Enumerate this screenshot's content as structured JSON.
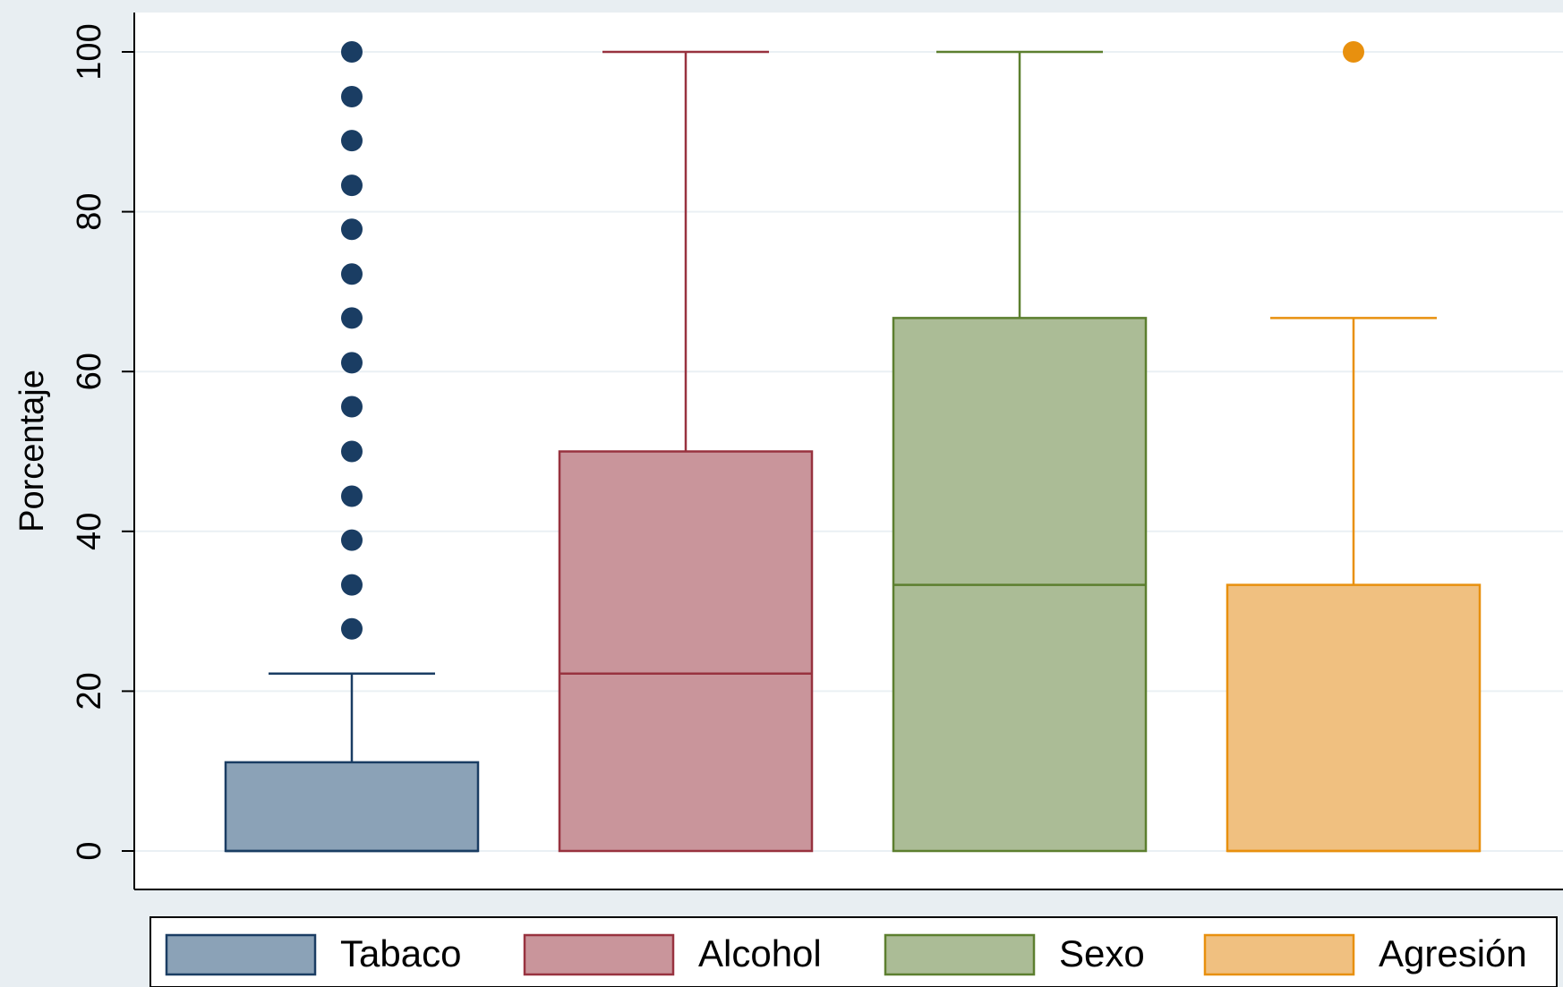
{
  "chart_data": {
    "type": "box",
    "title": "",
    "xlabel": "",
    "ylabel": "Porcentaje",
    "ylim": [
      0,
      100
    ],
    "yticks": [
      0,
      20,
      40,
      60,
      80,
      100
    ],
    "grid": true,
    "legend_position": "bottom",
    "series": [
      {
        "name": "Tabaco",
        "color": "#1a3d63",
        "fill": "#8ba2b7",
        "whisker_low": 0,
        "q1": 0,
        "median": 0,
        "q3": 11.1,
        "whisker_high": 22.2,
        "outliers": [
          27.8,
          33.3,
          38.9,
          44.4,
          50,
          55.6,
          61.1,
          66.7,
          72.2,
          77.8,
          83.3,
          88.9,
          94.4,
          100
        ]
      },
      {
        "name": "Alcohol",
        "color": "#98323f",
        "fill": "#c9959b",
        "whisker_low": 0,
        "q1": 0,
        "median": 22.2,
        "q3": 50,
        "whisker_high": 100,
        "outliers": []
      },
      {
        "name": "Sexo",
        "color": "#5c7f2f",
        "fill": "#abbc96",
        "whisker_low": 0,
        "q1": 0,
        "median": 33.3,
        "q3": 66.7,
        "whisker_high": 100,
        "outliers": []
      },
      {
        "name": "Agresión",
        "color": "#e8900e",
        "fill": "#f0c080",
        "whisker_low": 0,
        "q1": 0,
        "median": 0,
        "q3": 33.3,
        "whisker_high": 66.7,
        "outliers": [
          100
        ]
      }
    ]
  }
}
